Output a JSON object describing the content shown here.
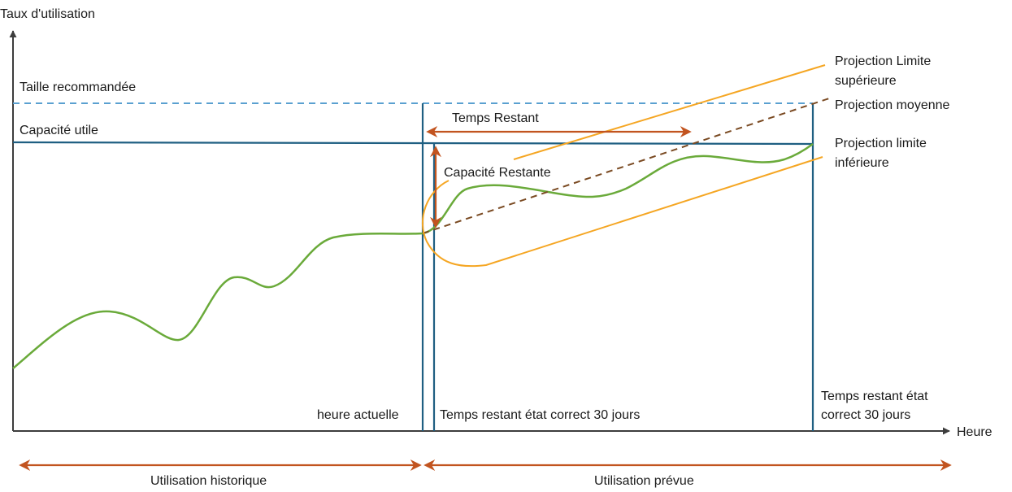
{
  "axes": {
    "y_label": "Taux d'utilisation",
    "x_label": "Heure"
  },
  "lines": {
    "recommended_size": "Taille recommandée",
    "usable_capacity": "Capacité utile"
  },
  "markers": {
    "current_time": "heure actuelle",
    "time_remaining_ok": "Temps restant état correct 30 jours",
    "time_remaining_ok_end_line1": "Temps restant état",
    "time_remaining_ok_end_line2": "correct 30 jours"
  },
  "annotations": {
    "time_remaining": "Temps Restant",
    "capacity_remaining": "Capacité Restante"
  },
  "projections": {
    "upper_line1": "Projection Limite",
    "upper_line2": "supérieure",
    "average": "Projection moyenne",
    "lower_line1": "Projection limite",
    "lower_line2": "inférieure"
  },
  "periods": {
    "historical": "Utilisation historique",
    "forecast": "Utilisation prévue"
  },
  "colors": {
    "axis": "#3d3d3d",
    "capacity": "#1f5f82",
    "recommended": "#5aa0d0",
    "usage": "#6aaa3a",
    "projection": "#f5a623",
    "average": "#7a4a22",
    "arrow": "#c2541f"
  }
}
